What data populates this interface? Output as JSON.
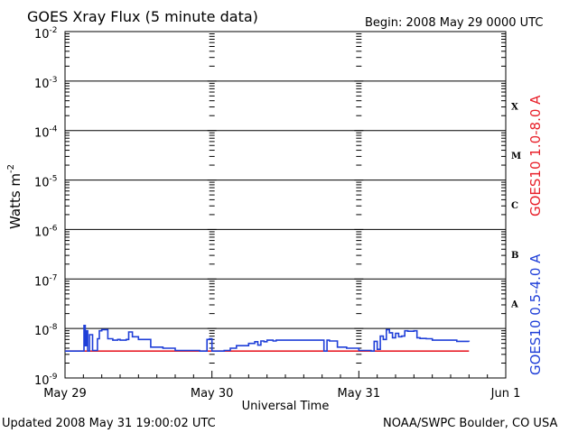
{
  "header": {
    "title": "GOES Xray Flux (5 minute data)",
    "begin": "Begin:  2008 May 29 0000 UTC"
  },
  "footer": {
    "updated": "Updated 2008 May 31 19:00:02 UTC",
    "source": "NOAA/SWPC Boulder, CO USA"
  },
  "colors": {
    "long_channel": "#e8202a",
    "short_channel": "#1f3fd8",
    "axes": "#000000"
  },
  "chart_data": {
    "type": "line",
    "title": "GOES Xray Flux (5 minute data)",
    "xlabel": "Universal Time",
    "ylabel_base": "Watts m",
    "ylabel_exp": "-2",
    "y_scale": "log",
    "ylim": [
      1e-09,
      0.01
    ],
    "xlim": [
      "2008-05-29 00:00",
      "2008-06-01 00:00"
    ],
    "x_ticks": [
      "May 29",
      "May 30",
      "May 31",
      "Jun 1"
    ],
    "y_ticks": [
      {
        "base": "10",
        "exp": "-2"
      },
      {
        "base": "10",
        "exp": "-3"
      },
      {
        "base": "10",
        "exp": "-4"
      },
      {
        "base": "10",
        "exp": "-5"
      },
      {
        "base": "10",
        "exp": "-6"
      },
      {
        "base": "10",
        "exp": "-7"
      },
      {
        "base": "10",
        "exp": "-8"
      },
      {
        "base": "10",
        "exp": "-9"
      }
    ],
    "flare_classes": [
      {
        "label": "X",
        "lo": 0.0001,
        "hi": 0.001
      },
      {
        "label": "M",
        "lo": 1e-05,
        "hi": 0.0001
      },
      {
        "label": "C",
        "lo": 1e-06,
        "hi": 1e-05
      },
      {
        "label": "B",
        "lo": 1e-07,
        "hi": 1e-06
      },
      {
        "label": "A",
        "lo": 1e-08,
        "hi": 1e-07
      }
    ],
    "decade_lines": [
      0.001,
      0.0001,
      1e-05,
      1e-06,
      1e-07,
      1e-08
    ],
    "grid": "dotted vertical at day boundaries",
    "series": [
      {
        "name": "GOES10 1.0-8.0 A",
        "color": "#e8202a",
        "x_hours": [
          0,
          66
        ],
        "y": [
          3.5e-09,
          3.5e-09
        ]
      },
      {
        "name": "GOES10 0.5-4.0 A",
        "color": "#1f3fd8",
        "x_hours": [
          0,
          3.0,
          3.1,
          3.3,
          3.5,
          3.7,
          4.0,
          4.5,
          5.0,
          5.3,
          5.6,
          6.0,
          7.0,
          7.8,
          8.2,
          8.6,
          9.0,
          10.0,
          10.4,
          11.0,
          12.0,
          14.0,
          16.0,
          18.0,
          20.0,
          22.0,
          22.8,
          23.2,
          23.6,
          24.0,
          25.0,
          26.0,
          27.0,
          28.0,
          30.0,
          31.0,
          31.5,
          32.0,
          32.5,
          33.0,
          34.0,
          34.5,
          36.0,
          38.0,
          40.0,
          42.0,
          42.3,
          42.8,
          43.2,
          44.0,
          44.5,
          46.0,
          48.0,
          50.0,
          50.5,
          51.0,
          51.5,
          52.0,
          52.5,
          53.0,
          53.5,
          54.0,
          54.5,
          55.0,
          55.5,
          56.0,
          57.0,
          57.5,
          58.0,
          58.5,
          59.0,
          60.0,
          62.0,
          64.0,
          66.0
        ],
        "y": [
          3.5e-09,
          3.5e-09,
          1.15e-08,
          4.5e-09,
          9e-09,
          3.5e-09,
          7.5e-09,
          3.6e-09,
          3.6e-09,
          6.2e-09,
          9e-09,
          9.5e-09,
          6.2e-09,
          5.8e-09,
          5.8e-09,
          6e-09,
          5.8e-09,
          6e-09,
          8.5e-09,
          6.8e-09,
          6e-09,
          4.2e-09,
          4e-09,
          3.6e-09,
          3.6e-09,
          3.5e-09,
          3.5e-09,
          6e-09,
          6.2e-09,
          3.5e-09,
          3.5e-09,
          3.6e-09,
          4e-09,
          4.5e-09,
          5e-09,
          5.4e-09,
          4.6e-09,
          5.6e-09,
          5.4e-09,
          5.8e-09,
          5.6e-09,
          5.8e-09,
          5.8e-09,
          5.8e-09,
          5.8e-09,
          5.8e-09,
          3.5e-09,
          5.8e-09,
          5.6e-09,
          5.6e-09,
          4.2e-09,
          4e-09,
          3.6e-09,
          3.5e-09,
          5.5e-09,
          3.8e-09,
          7e-09,
          6e-09,
          9.5e-09,
          8.2e-09,
          6.5e-09,
          8e-09,
          6.8e-09,
          7e-09,
          9e-09,
          8.8e-09,
          9e-09,
          6.5e-09,
          6.3e-09,
          6.3e-09,
          6.2e-09,
          5.8e-09,
          5.8e-09,
          5.5e-09,
          5.4e-09
        ]
      }
    ]
  }
}
